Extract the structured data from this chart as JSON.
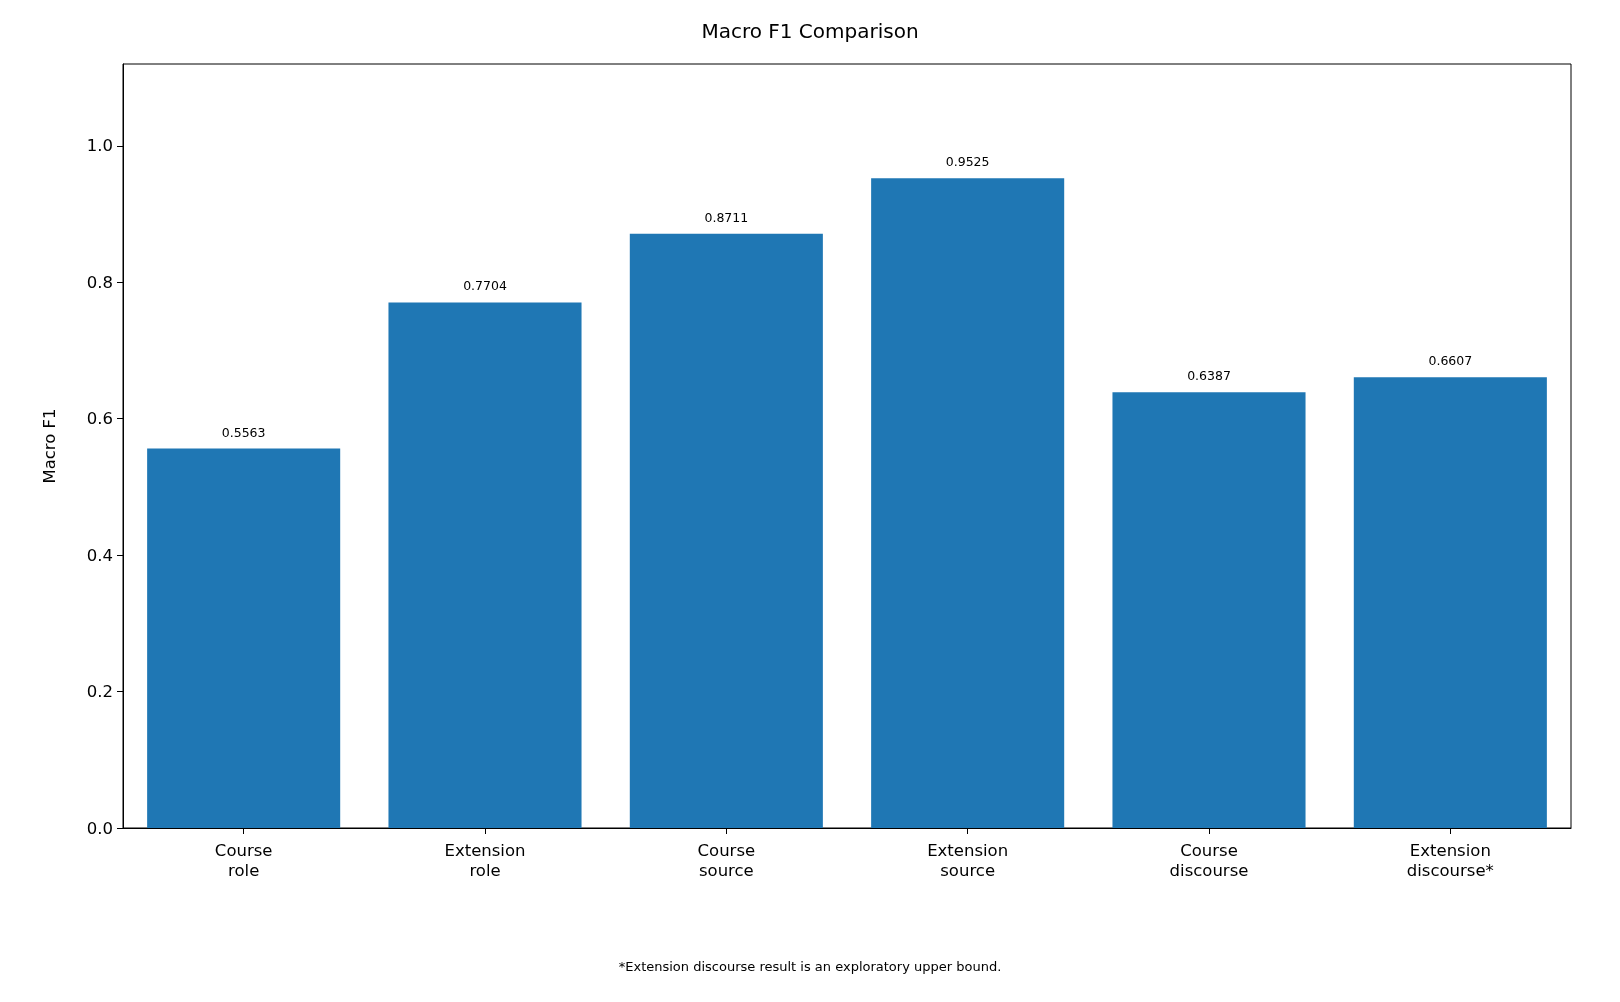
{
  "chart_data": {
    "type": "bar",
    "title": "Macro F1 Comparison",
    "ylabel": "Macro F1",
    "categories": [
      "Course\nrole",
      "Extension\nrole",
      "Course\nsource",
      "Extension\nsource",
      "Course\ndiscourse",
      "Extension\ndiscourse*"
    ],
    "values": [
      0.5563,
      0.7704,
      0.8711,
      0.9525,
      0.6387,
      0.6607
    ],
    "color": "#1f77b4",
    "ylim": [
      0,
      1.12
    ],
    "yticks": [
      {
        "value": 0,
        "label": "0.0"
      },
      {
        "value": 0.2,
        "label": "0.2"
      },
      {
        "value": 0.4,
        "label": "0.4"
      },
      {
        "value": 0.6,
        "label": "0.6"
      },
      {
        "value": 0.8,
        "label": "0.8"
      },
      {
        "value": 1,
        "label": "1.0"
      }
    ],
    "data_labels": true,
    "grid": false,
    "annotations": [
      "*Extension discourse result is an exploratory upper bound."
    ]
  }
}
